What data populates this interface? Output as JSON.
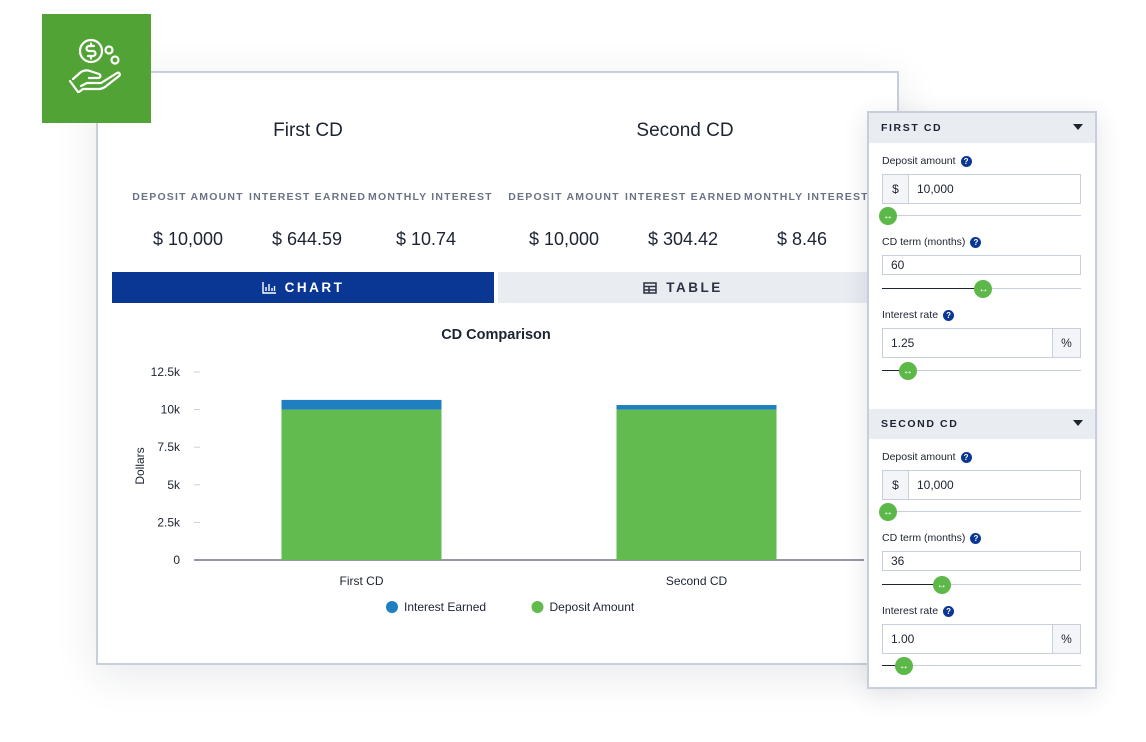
{
  "logo": {
    "icon": "hand-holding-dollar-icon",
    "color": "#52a335"
  },
  "summary": {
    "first": {
      "title": "First CD",
      "labels": [
        "DEPOSIT AMOUNT",
        "INTEREST EARNED",
        "MONTHLY INTEREST"
      ],
      "values": [
        "$ 10,000",
        "$ 644.59",
        "$ 10.74"
      ]
    },
    "second": {
      "title": "Second CD",
      "labels": [
        "DEPOSIT AMOUNT",
        "INTEREST EARNED",
        "MONTHLY INTEREST"
      ],
      "values": [
        "$ 10,000",
        "$ 304.42",
        "$ 8.46"
      ]
    }
  },
  "tabs": {
    "chart": {
      "label": "CHART",
      "icon": "bar-chart-icon",
      "active": true
    },
    "table": {
      "label": "TABLE",
      "icon": "table-icon",
      "active": false
    }
  },
  "chart_data": {
    "type": "bar",
    "stacked": true,
    "title": "CD Comparison",
    "ylabel": "Dollars",
    "xlabel": "",
    "categories": [
      "First CD",
      "Second CD"
    ],
    "series": [
      {
        "name": "Deposit Amount",
        "color": "#62bb4f",
        "values": [
          10000,
          10000
        ]
      },
      {
        "name": "Interest Earned",
        "color": "#1f7fc1",
        "values": [
          644.59,
          304.42
        ]
      }
    ],
    "legend_order": [
      "Interest Earned",
      "Deposit Amount"
    ],
    "ylim": [
      0,
      12500
    ],
    "yticks": [
      0,
      2500,
      5000,
      7500,
      10000,
      12500
    ],
    "ytick_labels": [
      "0",
      "2.5k",
      "5k",
      "7.5k",
      "10k",
      "12.5k"
    ],
    "legend_position": "bottom",
    "grid": false
  },
  "panel": {
    "first": {
      "header": "FIRST CD",
      "deposit": {
        "label": "Deposit amount",
        "prefix": "$",
        "value": "10,000",
        "slider_fraction": 0.03
      },
      "term": {
        "label": "CD term (months)",
        "value": "60",
        "slider_fraction": 0.51
      },
      "rate": {
        "label": "Interest rate",
        "value": "1.25",
        "suffix": "%",
        "slider_fraction": 0.13
      }
    },
    "second": {
      "header": "SECOND CD",
      "deposit": {
        "label": "Deposit amount",
        "prefix": "$",
        "value": "10,000",
        "slider_fraction": 0.03
      },
      "term": {
        "label": "CD term (months)",
        "value": "36",
        "slider_fraction": 0.3
      },
      "rate": {
        "label": "Interest rate",
        "value": "1.00",
        "suffix": "%",
        "slider_fraction": 0.11
      }
    }
  }
}
